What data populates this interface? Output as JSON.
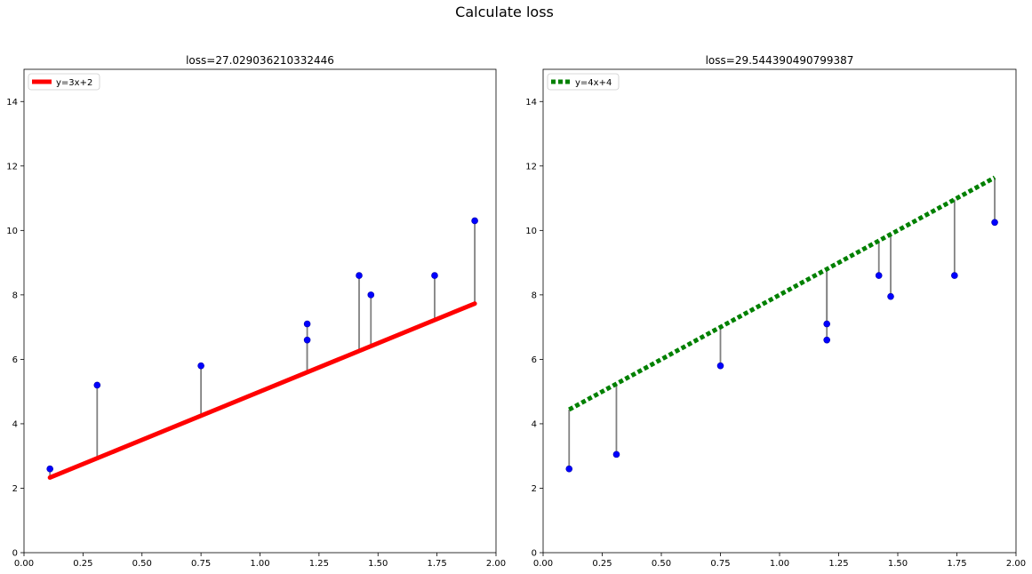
{
  "figure": {
    "title": "Calculate loss"
  },
  "chart_data": [
    {
      "type": "scatter",
      "title": "loss=27.029036210332446",
      "xlim": [
        0,
        2
      ],
      "ylim": [
        0,
        15
      ],
      "xticks": [
        "0.00",
        "0.25",
        "0.50",
        "0.75",
        "1.00",
        "1.25",
        "1.50",
        "1.75",
        "2.00"
      ],
      "yticks": [
        "0",
        "2",
        "4",
        "6",
        "8",
        "10",
        "12",
        "14"
      ],
      "grid": false,
      "legend_position": "top-left",
      "points": {
        "color": "#0000ff",
        "x": [
          0.11,
          0.31,
          0.75,
          1.2,
          1.2,
          1.42,
          1.47,
          1.74,
          1.91
        ],
        "y": [
          2.6,
          5.2,
          5.8,
          7.1,
          6.6,
          8.6,
          8.0,
          8.6,
          10.3
        ]
      },
      "line": {
        "label": "y=3x+2",
        "slope": 3,
        "intercept": 2,
        "color": "#ff0000",
        "style": "solid"
      },
      "residual_color": "#808080"
    },
    {
      "type": "scatter",
      "title": "loss=29.544390490799387",
      "xlim": [
        0,
        2
      ],
      "ylim": [
        0,
        15
      ],
      "xticks": [
        "0.00",
        "0.25",
        "0.50",
        "0.75",
        "1.00",
        "1.25",
        "1.50",
        "1.75",
        "2.00"
      ],
      "yticks": [
        "0",
        "2",
        "4",
        "6",
        "8",
        "10",
        "12",
        "14"
      ],
      "grid": false,
      "legend_position": "top-left",
      "points": {
        "color": "#0000ff",
        "x": [
          0.11,
          0.31,
          0.75,
          1.2,
          1.2,
          1.42,
          1.47,
          1.74,
          1.91
        ],
        "y": [
          2.6,
          3.05,
          5.8,
          7.1,
          6.6,
          8.6,
          7.95,
          8.6,
          10.25
        ]
      },
      "line": {
        "label": "y=4x+4",
        "slope": 4,
        "intercept": 4,
        "color": "#008000",
        "style": "dotted"
      },
      "residual_color": "#808080"
    }
  ]
}
